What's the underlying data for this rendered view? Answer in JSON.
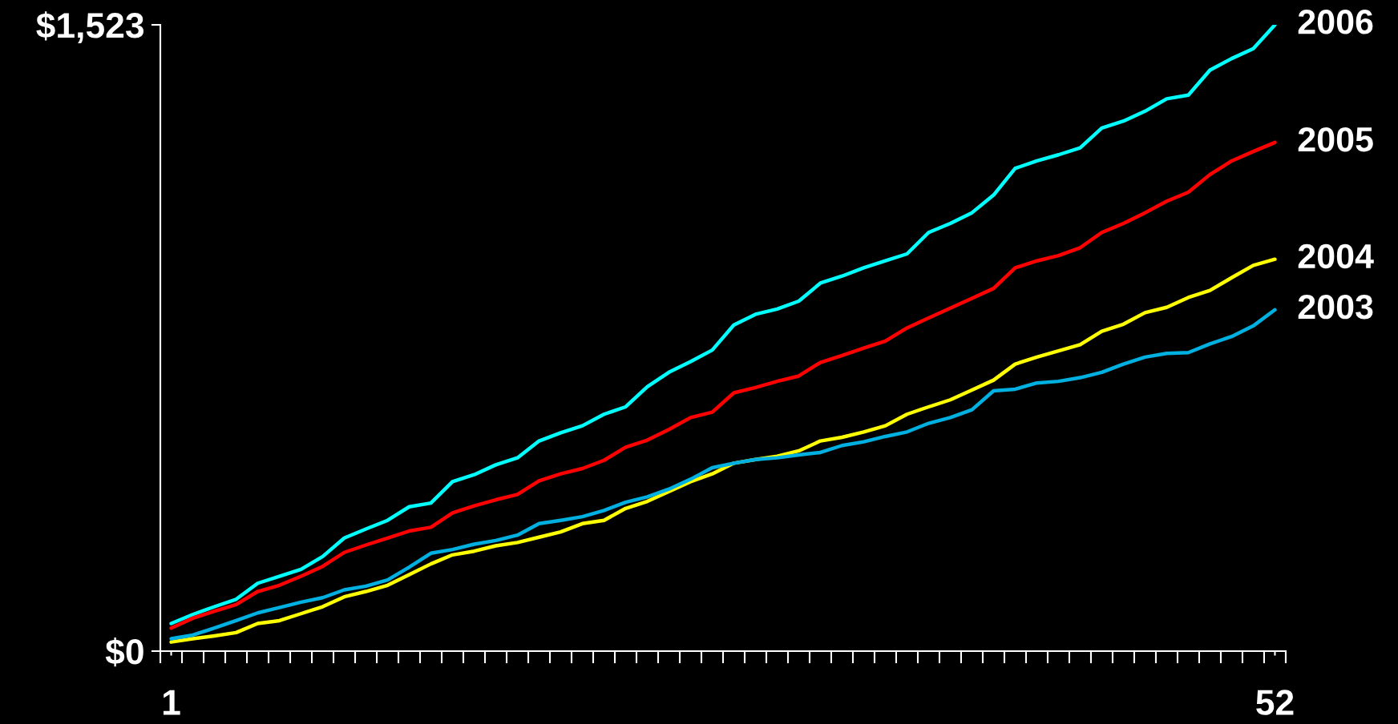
{
  "chart_data": {
    "type": "line",
    "x": [
      1,
      2,
      3,
      4,
      5,
      6,
      7,
      8,
      9,
      10,
      11,
      12,
      13,
      14,
      15,
      16,
      17,
      18,
      19,
      20,
      21,
      22,
      23,
      24,
      25,
      26,
      27,
      28,
      29,
      30,
      31,
      32,
      33,
      34,
      35,
      36,
      37,
      38,
      39,
      40,
      41,
      42,
      43,
      44,
      45,
      46,
      47,
      48,
      49,
      50,
      51,
      52
    ],
    "xlim": [
      0.5,
      52.5
    ],
    "xticks": [
      {
        "value": 1,
        "label": "1"
      },
      {
        "value": 52,
        "label": "52"
      },
      {
        "value": 0.5,
        "label": null
      },
      {
        "value": 1.5,
        "label": null
      },
      {
        "value": 2.5,
        "label": null
      },
      {
        "value": 3.5,
        "label": null
      },
      {
        "value": 4.5,
        "label": null
      },
      {
        "value": 5.5,
        "label": null
      },
      {
        "value": 6.5,
        "label": null
      },
      {
        "value": 7.5,
        "label": null
      },
      {
        "value": 8.5,
        "label": null
      },
      {
        "value": 9.5,
        "label": null
      },
      {
        "value": 10.5,
        "label": null
      },
      {
        "value": 11.5,
        "label": null
      },
      {
        "value": 12.5,
        "label": null
      },
      {
        "value": 13.5,
        "label": null
      },
      {
        "value": 14.5,
        "label": null
      },
      {
        "value": 15.5,
        "label": null
      },
      {
        "value": 16.5,
        "label": null
      },
      {
        "value": 17.5,
        "label": null
      },
      {
        "value": 18.5,
        "label": null
      },
      {
        "value": 19.5,
        "label": null
      },
      {
        "value": 20.5,
        "label": null
      },
      {
        "value": 21.5,
        "label": null
      },
      {
        "value": 22.5,
        "label": null
      },
      {
        "value": 23.5,
        "label": null
      },
      {
        "value": 24.5,
        "label": null
      },
      {
        "value": 25.5,
        "label": null
      },
      {
        "value": 26.5,
        "label": null
      },
      {
        "value": 27.5,
        "label": null
      },
      {
        "value": 28.5,
        "label": null
      },
      {
        "value": 29.5,
        "label": null
      },
      {
        "value": 30.5,
        "label": null
      },
      {
        "value": 31.5,
        "label": null
      },
      {
        "value": 32.5,
        "label": null
      },
      {
        "value": 33.5,
        "label": null
      },
      {
        "value": 34.5,
        "label": null
      },
      {
        "value": 35.5,
        "label": null
      },
      {
        "value": 36.5,
        "label": null
      },
      {
        "value": 37.5,
        "label": null
      },
      {
        "value": 38.5,
        "label": null
      },
      {
        "value": 39.5,
        "label": null
      },
      {
        "value": 40.5,
        "label": null
      },
      {
        "value": 41.5,
        "label": null
      },
      {
        "value": 42.5,
        "label": null
      },
      {
        "value": 43.5,
        "label": null
      },
      {
        "value": 44.5,
        "label": null
      },
      {
        "value": 45.5,
        "label": null
      },
      {
        "value": 46.5,
        "label": null
      },
      {
        "value": 47.5,
        "label": null
      },
      {
        "value": 48.5,
        "label": null
      },
      {
        "value": 49.5,
        "label": null
      },
      {
        "value": 50.5,
        "label": null
      },
      {
        "value": 51.5,
        "label": null
      },
      {
        "value": 52.5,
        "label": null
      }
    ],
    "ylim": [
      0,
      1523
    ],
    "yticks": [
      {
        "value": 0,
        "label": "$0"
      },
      {
        "value": 1523,
        "label": "$1,523"
      }
    ],
    "line_style": "solid",
    "marker": "none",
    "series": [
      {
        "name": "2006",
        "color": "#00ffff",
        "values": [
          67,
          89,
          108,
          126,
          165,
          182,
          199,
          230,
          275,
          297,
          318,
          351,
          360,
          412,
          429,
          453,
          470,
          511,
          531,
          548,
          576,
          594,
          643,
          678,
          704,
          732,
          793,
          819,
          832,
          851,
          895,
          912,
          932,
          949,
          966,
          1018,
          1040,
          1066,
          1109,
          1174,
          1192,
          1207,
          1224,
          1272,
          1289,
          1313,
          1343,
          1352,
          1413,
          1441,
          1465,
          1523
        ]
      },
      {
        "name": "2005",
        "color": "#ff0000",
        "values": [
          56,
          80,
          97,
          113,
          145,
          160,
          182,
          206,
          240,
          258,
          275,
          292,
          301,
          336,
          353,
          368,
          381,
          414,
          431,
          444,
          464,
          496,
          513,
          539,
          568,
          581,
          628,
          641,
          656,
          669,
          702,
          719,
          737,
          754,
          786,
          810,
          834,
          858,
          882,
          932,
          949,
          962,
          981,
          1018,
          1040,
          1066,
          1094,
          1116,
          1159,
          1192,
          1215,
          1237
        ]
      },
      {
        "name": "2004",
        "color": "#ffff00",
        "values": [
          22,
          30,
          37,
          45,
          67,
          74,
          91,
          108,
          132,
          145,
          160,
          186,
          212,
          234,
          243,
          256,
          264,
          277,
          290,
          310,
          318,
          347,
          364,
          388,
          412,
          431,
          457,
          466,
          474,
          487,
          511,
          520,
          533,
          548,
          576,
          594,
          611,
          635,
          659,
          698,
          715,
          730,
          745,
          778,
          795,
          823,
          836,
          860,
          877,
          908,
          938,
          953
        ]
      },
      {
        "name": "2003",
        "color": "#00b0e0",
        "values": [
          30,
          39,
          56,
          74,
          93,
          106,
          119,
          130,
          149,
          158,
          173,
          204,
          238,
          247,
          260,
          269,
          282,
          310,
          318,
          327,
          342,
          362,
          375,
          394,
          418,
          446,
          457,
          466,
          470,
          477,
          483,
          500,
          509,
          522,
          533,
          554,
          568,
          587,
          633,
          637,
          652,
          656,
          665,
          678,
          698,
          715,
          724,
          726,
          747,
          765,
          791,
          830
        ]
      }
    ]
  }
}
